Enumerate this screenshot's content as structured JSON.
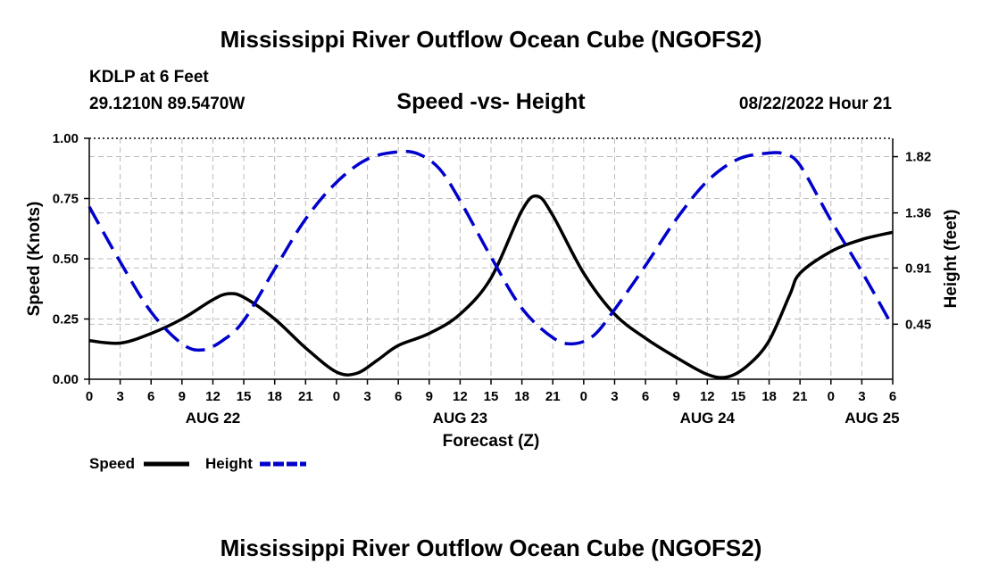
{
  "header": {
    "title": "Mississippi River Outflow Ocean Cube (NGOFS2)",
    "station": "KDLP at 6 Feet",
    "coords": "29.1210N  89.5470W",
    "subtitle": "Speed -vs- Height",
    "datetime": "08/22/2022 Hour 21"
  },
  "footer": {
    "title": "Mississippi River Outflow Ocean Cube (NGOFS2)"
  },
  "colors": {
    "speed": "#000000",
    "height": "#0000cc",
    "grid": "#bbbbbb"
  },
  "chart_data": {
    "type": "line",
    "xlabel": "Forecast (Z)",
    "ylabel": "Speed (Knots)",
    "y2label": "Height (feet)",
    "xlim": [
      0,
      78
    ],
    "ylim": [
      0,
      1.0
    ],
    "y2lim": [
      0.0,
      1.97
    ],
    "x_ticks": [
      0,
      3,
      6,
      9,
      12,
      15,
      18,
      21,
      24,
      27,
      30,
      33,
      36,
      39,
      42,
      45,
      48,
      51,
      54,
      57,
      60,
      63,
      66,
      69,
      72,
      75,
      78
    ],
    "x_tick_labels": [
      "0",
      "3",
      "6",
      "9",
      "12",
      "15",
      "18",
      "21",
      "0",
      "3",
      "6",
      "9",
      "12",
      "15",
      "18",
      "21",
      "0",
      "3",
      "6",
      "9",
      "12",
      "15",
      "18",
      "21",
      "0",
      "3",
      "6"
    ],
    "day_labels": [
      {
        "x": 12,
        "label": "AUG 22"
      },
      {
        "x": 36,
        "label": "AUG 23"
      },
      {
        "x": 60,
        "label": "AUG 24"
      },
      {
        "x": 76,
        "label": "AUG 25"
      }
    ],
    "y_ticks": [
      0.0,
      0.25,
      0.5,
      0.75,
      1.0
    ],
    "y_tick_labels": [
      "0.00",
      "0.25",
      "0.50",
      "0.75",
      "1.00"
    ],
    "y2_ticks": [
      0.45,
      0.91,
      1.36,
      1.82
    ],
    "y2_tick_labels": [
      "0.45",
      "0.91",
      "1.36",
      "1.82"
    ],
    "series": [
      {
        "name": "Speed",
        "axis": "left",
        "style": "solid",
        "x": [
          0,
          3,
          6,
          9,
          12,
          13.5,
          15,
          18,
          21,
          24,
          26,
          28,
          30,
          33,
          36,
          39,
          42,
          43.5,
          45,
          48,
          51,
          54,
          57,
          60,
          62,
          64,
          66,
          68,
          69,
          72,
          75,
          78
        ],
        "values": [
          0.16,
          0.15,
          0.19,
          0.25,
          0.33,
          0.355,
          0.34,
          0.25,
          0.13,
          0.03,
          0.025,
          0.08,
          0.14,
          0.19,
          0.27,
          0.42,
          0.7,
          0.76,
          0.68,
          0.44,
          0.27,
          0.17,
          0.09,
          0.02,
          0.01,
          0.06,
          0.16,
          0.35,
          0.44,
          0.53,
          0.58,
          0.61
        ]
      },
      {
        "name": "Height",
        "axis": "right",
        "style": "dashed",
        "x": [
          0,
          3,
          6,
          9,
          11,
          13,
          15,
          18,
          21,
          24,
          27,
          30,
          32,
          34,
          36,
          39,
          42,
          45,
          47,
          49,
          51,
          54,
          57,
          60,
          63,
          66,
          67.5,
          69,
          72,
          75,
          78
        ],
        "values": [
          1.41,
          0.96,
          0.55,
          0.29,
          0.24,
          0.32,
          0.48,
          0.9,
          1.31,
          1.61,
          1.8,
          1.86,
          1.84,
          1.72,
          1.46,
          1.0,
          0.58,
          0.34,
          0.29,
          0.36,
          0.57,
          0.93,
          1.31,
          1.62,
          1.8,
          1.85,
          1.84,
          1.75,
          1.3,
          0.88,
          0.43
        ]
      }
    ],
    "legend": [
      {
        "label": "Speed",
        "series": "Speed"
      },
      {
        "label": "Height",
        "series": "Height"
      }
    ],
    "grid": true
  }
}
